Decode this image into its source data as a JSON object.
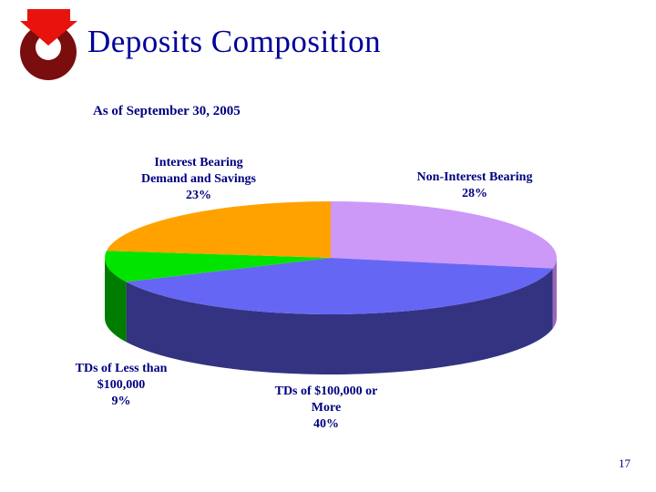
{
  "page": {
    "title": "Deposits Composition",
    "subtitle": "As of September 30, 2005",
    "page_number": "17"
  },
  "logo": {
    "name": "red-arrow-donut-logo",
    "ring_color": "#7a0d0d",
    "arrow_color": "#e8130d"
  },
  "chart_data": {
    "type": "pie",
    "style": "3d",
    "title": "Deposits Composition",
    "subtitle": "As of September 30, 2005",
    "direction": "clockwise",
    "start_angle_deg": 0,
    "legend": "none",
    "slices": [
      {
        "label": "Non-Interest Bearing",
        "value": 28,
        "color": "#cc99f8",
        "side_color": "#9966bb"
      },
      {
        "label": "TDs of $100,000 or More",
        "value": 40,
        "color": "#6666f5",
        "side_color": "#333381"
      },
      {
        "label": "TDs of Less than $100,000",
        "value": 9,
        "color": "#00e400",
        "side_color": "#007d00"
      },
      {
        "label": "Interest Bearing Demand and Savings",
        "value": 23,
        "color": "#ffa200",
        "side_color": "#b36b00"
      }
    ]
  },
  "labels": {
    "interest_bearing": {
      "line1": "Interest Bearing",
      "line2": "Demand and Savings",
      "pct": "23%"
    },
    "non_interest": {
      "line1": "Non-Interest Bearing",
      "pct": "28%"
    },
    "tds_less": {
      "line1": "TDs of Less than",
      "line2": "$100,000",
      "pct": "9%"
    },
    "tds_more": {
      "line1": "TDs of $100,000 or",
      "line2": "More",
      "pct": "40%"
    }
  },
  "colors": {
    "title": "#000099",
    "text": "#000080",
    "background": "#ffffff"
  }
}
